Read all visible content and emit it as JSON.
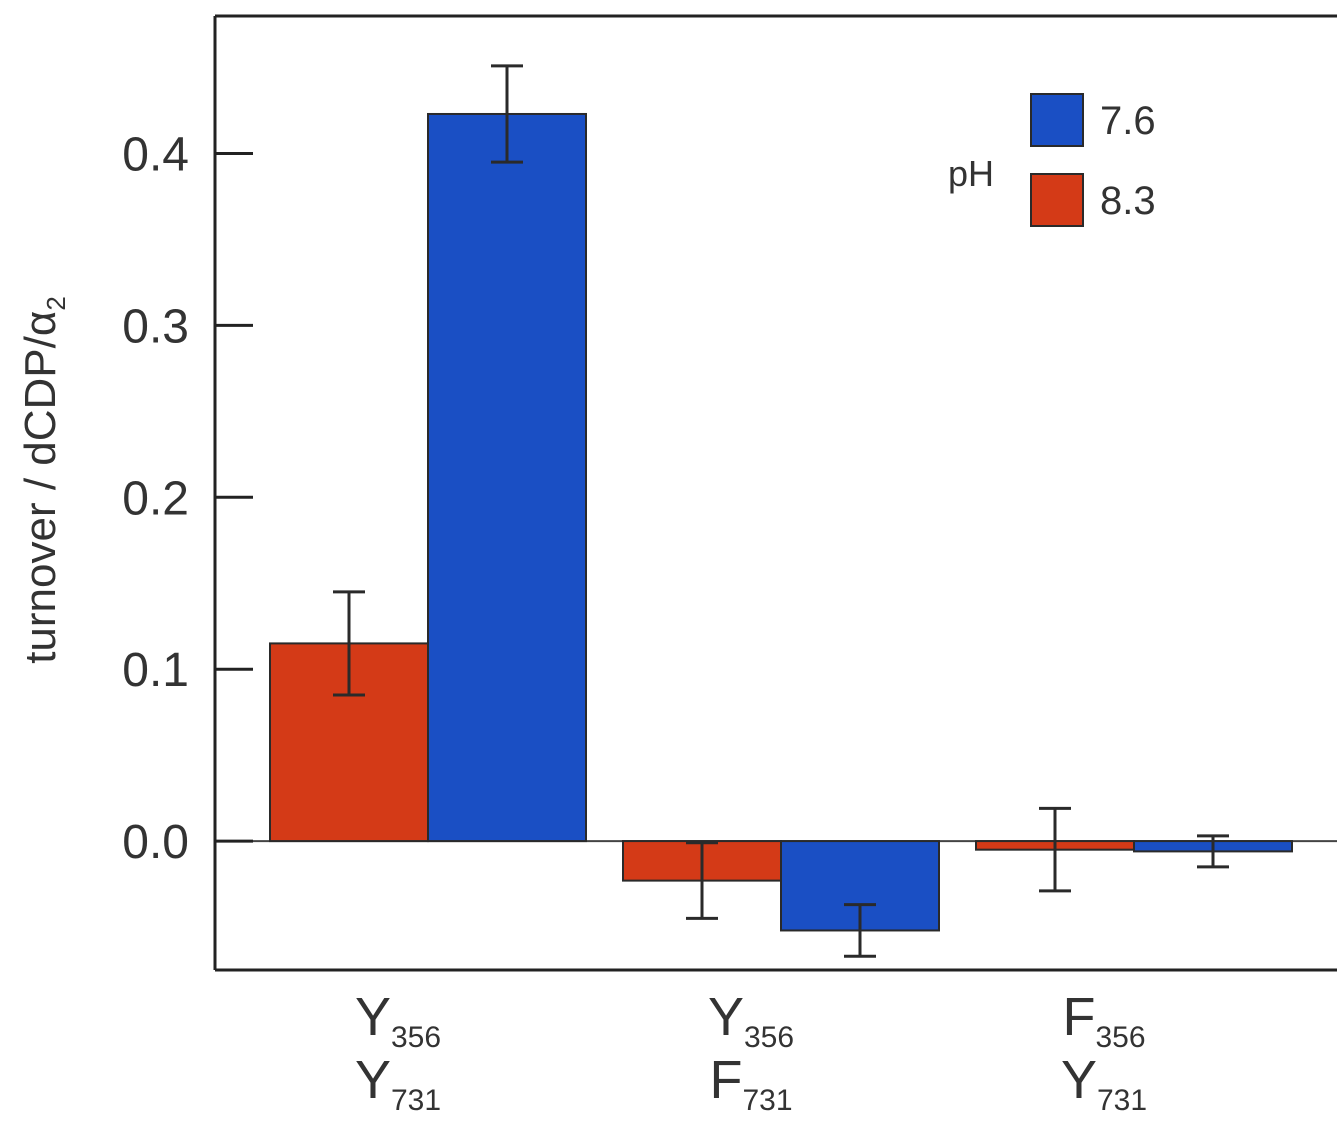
{
  "chart_data": {
    "type": "bar",
    "ylabel": "turnover / dCDP/α",
    "ylabel_subscript": "2",
    "ylim": [
      -0.075,
      0.48
    ],
    "yticks": [
      {
        "value": 0.4,
        "label": "0.4"
      },
      {
        "value": 0.3,
        "label": "0.3"
      },
      {
        "value": 0.2,
        "label": "0.2"
      },
      {
        "value": 0.1,
        "label": "0.1"
      },
      {
        "value": 0.0,
        "label": "0.0"
      }
    ],
    "categories": [
      {
        "line1": "Y",
        "sub1": "356",
        "line2": "Y",
        "sub2": "731"
      },
      {
        "line1": "Y",
        "sub1": "356",
        "line2": "F",
        "sub2": "731"
      },
      {
        "line1": "F",
        "sub1": "356",
        "line2": "Y",
        "sub2": "731"
      }
    ],
    "legend": {
      "title": "pH",
      "placement": "top-right"
    },
    "series": [
      {
        "name": "8.3",
        "color": "#d43a17",
        "values": [
          0.115,
          -0.023,
          -0.005
        ],
        "errors": [
          0.03,
          0.022,
          0.024
        ]
      },
      {
        "name": "7.6",
        "color": "#1a4fc4",
        "values": [
          0.423,
          -0.052,
          -0.006
        ],
        "errors": [
          0.028,
          0.015,
          0.009
        ]
      }
    ],
    "grid": false,
    "zero_line": true
  }
}
